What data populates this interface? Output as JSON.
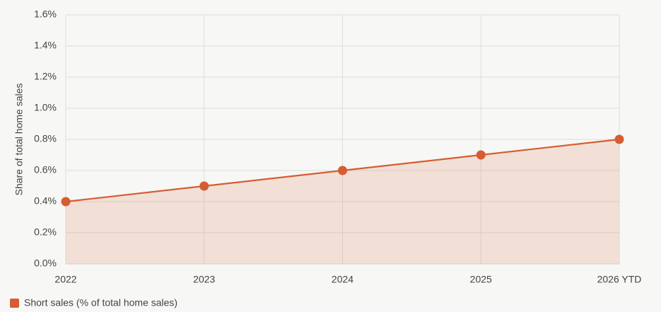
{
  "chart_data": {
    "type": "line",
    "y_label": "Share of total home sales",
    "categories": [
      "2022",
      "2023",
      "2024",
      "2025",
      "2026 YTD"
    ],
    "series": [
      {
        "name": "Short sales (% of total home sales)",
        "color": "#d65d31",
        "values": [
          0.4,
          0.5,
          0.6,
          0.7,
          0.8
        ]
      }
    ],
    "ylim": [
      0,
      1.6
    ],
    "yticks": [
      {
        "value": 0,
        "label": "0.0%"
      },
      {
        "value": 0.2,
        "label": "0.2%"
      },
      {
        "value": 0.4,
        "label": "0.4%"
      },
      {
        "value": 0.6,
        "label": "0.6%"
      },
      {
        "value": 0.8,
        "label": "0.8%"
      },
      {
        "value": 1.0,
        "label": "1.0%"
      },
      {
        "value": 1.2,
        "label": "1.2%"
      },
      {
        "value": 1.4,
        "label": "1.4%"
      },
      {
        "value": 1.6,
        "label": "1.6%"
      }
    ],
    "grid": true,
    "fill_area": true,
    "legend": "bottom-left"
  }
}
